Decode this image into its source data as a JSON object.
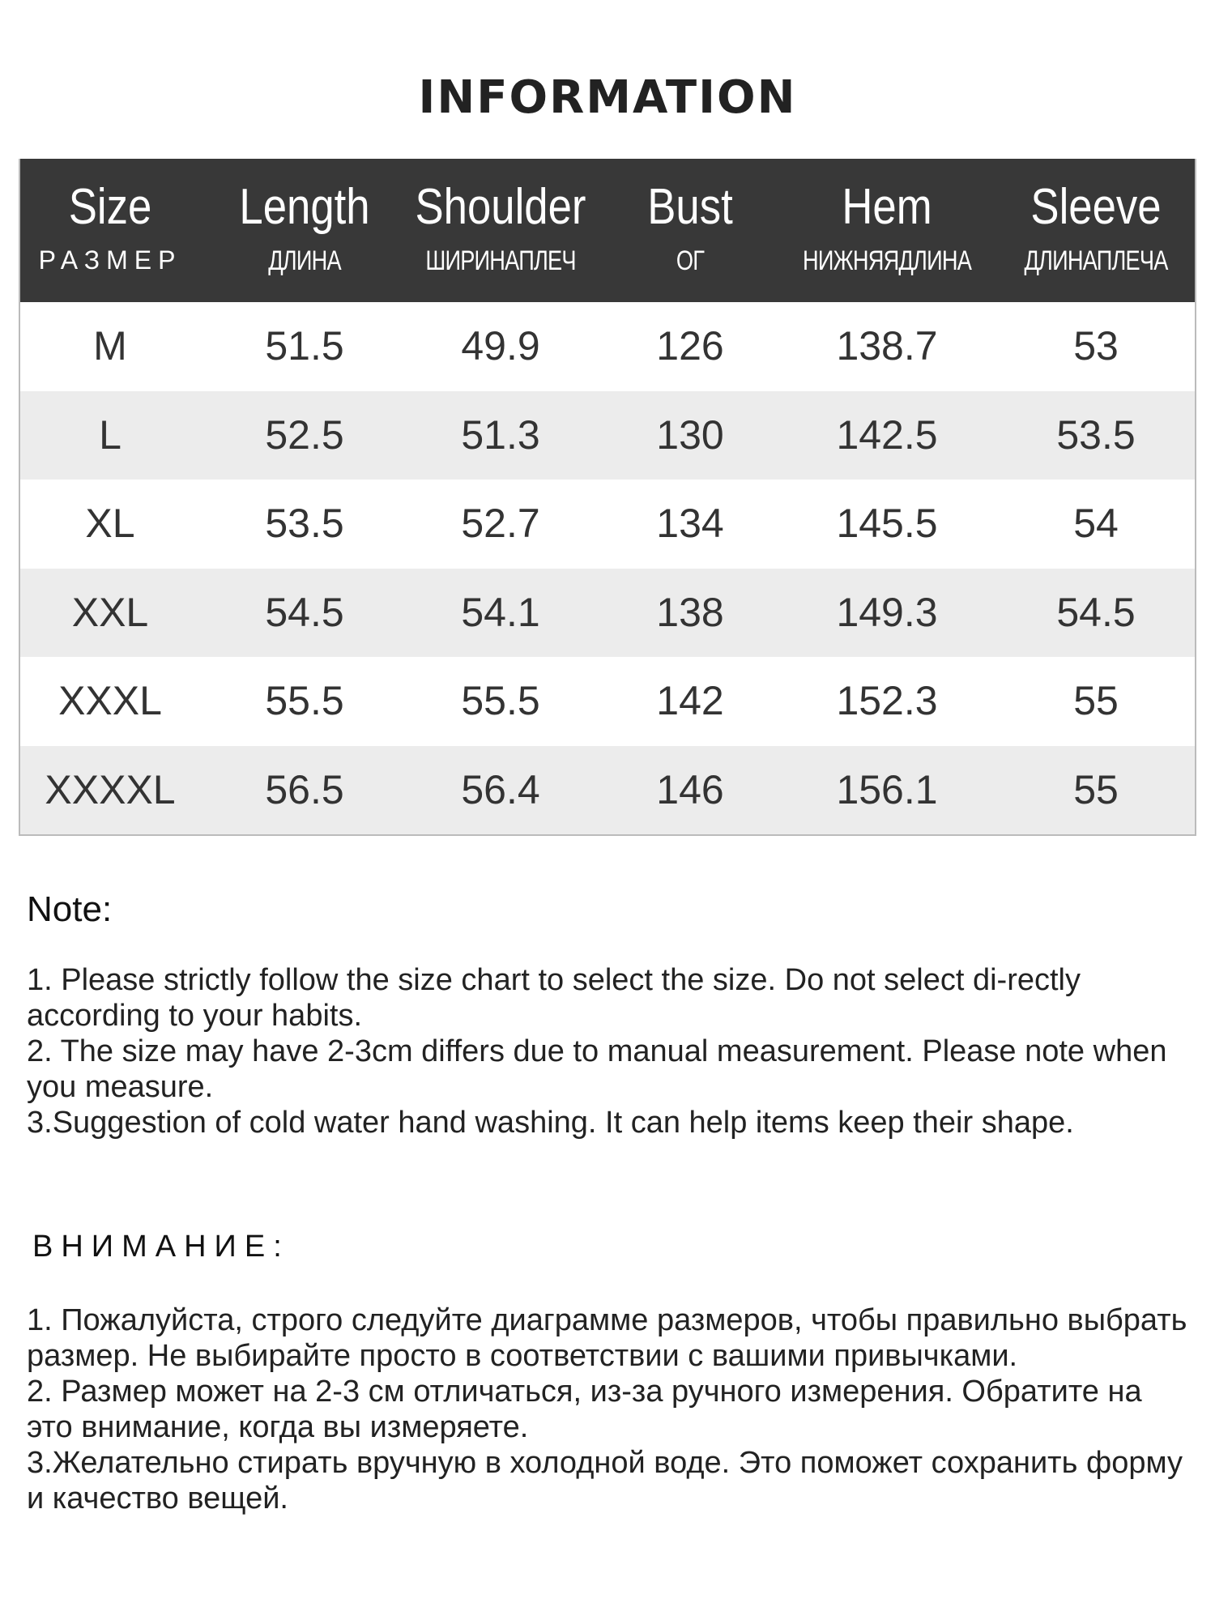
{
  "title": "INFORMATION",
  "table": {
    "headers": [
      {
        "en": "Size",
        "ru": "РАЗМЕР"
      },
      {
        "en": "Length",
        "ru": "ДЛИНА"
      },
      {
        "en": "Shoulder",
        "ru": "ШИРИНАПЛЕЧ"
      },
      {
        "en": "Bust",
        "ru": "ОГ"
      },
      {
        "en": "Hem",
        "ru": "НИЖНЯЯДЛИНА"
      },
      {
        "en": "Sleeve",
        "ru": "ДЛИНАПЛЕЧА"
      }
    ],
    "rows": [
      [
        "M",
        "51.5",
        "49.9",
        "126",
        "138.7",
        "53"
      ],
      [
        "L",
        "52.5",
        "51.3",
        "130",
        "142.5",
        "53.5"
      ],
      [
        "XL",
        "53.5",
        "52.7",
        "134",
        "145.5",
        "54"
      ],
      [
        "XXL",
        "54.5",
        "54.1",
        "138",
        "149.3",
        "54.5"
      ],
      [
        "XXXL",
        "55.5",
        "55.5",
        "142",
        "152.3",
        "55"
      ],
      [
        "XXXXL",
        "56.5",
        "56.4",
        "146",
        "156.1",
        "55"
      ]
    ]
  },
  "note": {
    "heading": "Note:",
    "items": [
      "1. Please strictly follow the size chart  to select the size. Do not select di-rectly according to your habits.",
      "2. The size may have 2-3cm differs due to manual measurement. Please note when you measure.",
      "3.Suggestion of cold water hand washing. It can help items keep their shape."
    ]
  },
  "note_ru": {
    "heading": "ВНИМАНИЕ:",
    "items": [
      "1. Пожалуйста, строго следуйте диаграмме размеров, чтобы правильно выбрать размер. Не выбирайте просто в соответствии с вашими привычками.",
      "2. Размер может на 2-3 см отличаться, из-за ручного измерения. Обратите на это внимание, когда вы измеряете.",
      "3.Желательно стирать вручную в холодной воде. Это поможет сохранить форму и качество вещей."
    ]
  },
  "colors": {
    "header_bg": "#383838",
    "alt_row": "#ececec"
  }
}
